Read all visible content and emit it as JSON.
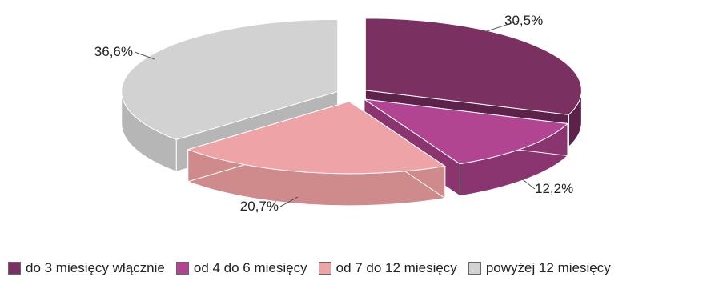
{
  "chart_data": {
    "type": "pie",
    "three_d": true,
    "exploded": true,
    "categories": [
      "do 3 miesięcy włącznie",
      "od 4 do 6 miesięcy",
      "od 7 do 12 miesięcy",
      "powyżej 12 miesięcy"
    ],
    "values": [
      30.5,
      12.2,
      20.7,
      36.6
    ],
    "data_labels": [
      "30,5%",
      "12,2%",
      "20,7%",
      "36,6%"
    ],
    "colors": [
      "#7a3161",
      "#b24592",
      "#eea3a6",
      "#d2d2d2"
    ],
    "side_colors": [
      "#5c2249",
      "#8b3570",
      "#cf8a8c",
      "#b6b6b6"
    ],
    "legend_position": "bottom"
  }
}
